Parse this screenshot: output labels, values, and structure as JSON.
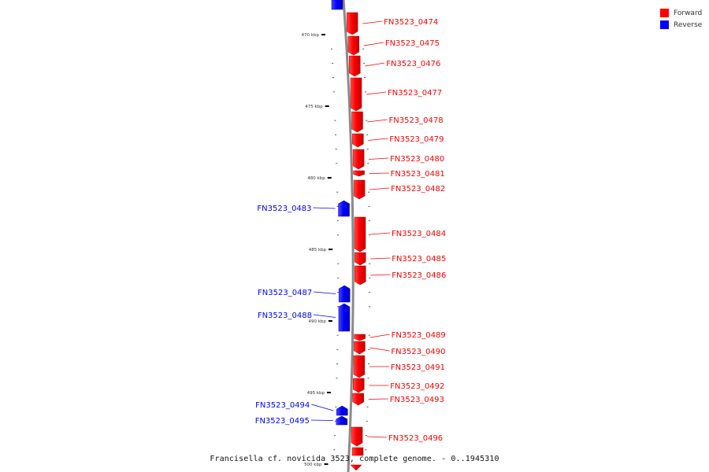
{
  "caption": "Francisella cf. novicida 3523, complete genome. - 0..1945310",
  "colors": {
    "forward": "#ff0000",
    "reverse": "#0000ff",
    "axis": "#888888"
  },
  "legend": [
    {
      "label": "Forward",
      "color": "#ff0000"
    },
    {
      "label": "Reverse",
      "color": "#0000ff"
    }
  ],
  "axis": {
    "unit": "kbp",
    "ticks": [
      {
        "kbp": 470,
        "label": "470 kbp"
      },
      {
        "kbp": 475,
        "label": "475 kbp"
      },
      {
        "kbp": 480,
        "label": "480 kbp"
      },
      {
        "kbp": 485,
        "label": "485 kbp"
      },
      {
        "kbp": 490,
        "label": "490 kbp"
      },
      {
        "kbp": 495,
        "label": "495 kbp"
      },
      {
        "kbp": 500,
        "label": "500 kbp"
      }
    ]
  },
  "genes": [
    {
      "label": "FN3523_0474",
      "strand": "forward"
    },
    {
      "label": "FN3523_0475",
      "strand": "forward"
    },
    {
      "label": "FN3523_0476",
      "strand": "forward"
    },
    {
      "label": "FN3523_0477",
      "strand": "forward"
    },
    {
      "label": "FN3523_0478",
      "strand": "forward"
    },
    {
      "label": "FN3523_0479",
      "strand": "forward"
    },
    {
      "label": "FN3523_0480",
      "strand": "forward"
    },
    {
      "label": "FN3523_0481",
      "strand": "forward"
    },
    {
      "label": "FN3523_0482",
      "strand": "forward"
    },
    {
      "label": "FN3523_0483",
      "strand": "reverse"
    },
    {
      "label": "FN3523_0484",
      "strand": "forward"
    },
    {
      "label": "FN3523_0485",
      "strand": "forward"
    },
    {
      "label": "FN3523_0486",
      "strand": "forward"
    },
    {
      "label": "FN3523_0487",
      "strand": "reverse"
    },
    {
      "label": "FN3523_0488",
      "strand": "reverse"
    },
    {
      "label": "FN3523_0489",
      "strand": "forward"
    },
    {
      "label": "FN3523_0490",
      "strand": "forward"
    },
    {
      "label": "FN3523_0491",
      "strand": "forward"
    },
    {
      "label": "FN3523_0492",
      "strand": "forward"
    },
    {
      "label": "FN3523_0493",
      "strand": "forward"
    },
    {
      "label": "FN3523_0494",
      "strand": "reverse"
    },
    {
      "label": "FN3523_0495",
      "strand": "reverse"
    },
    {
      "label": "FN3523_0496",
      "strand": "forward"
    }
  ]
}
